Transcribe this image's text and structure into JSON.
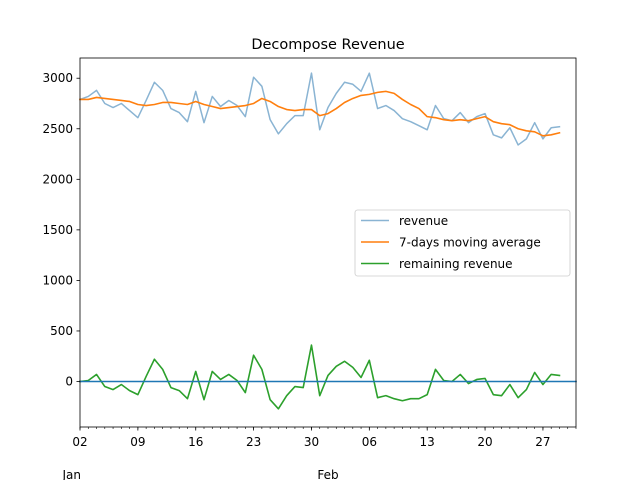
{
  "chart_data": {
    "type": "line",
    "title": "Decompose Revenue",
    "xlabel": "",
    "ylabel": "",
    "x_start": "2023-01-02",
    "ylim": [
      -450,
      3200
    ],
    "y_ticks": [
      0,
      500,
      1000,
      1500,
      2000,
      2500,
      3000
    ],
    "x_ticks": [
      {
        "date": "2023-01-02",
        "label": "02"
      },
      {
        "date": "2023-01-09",
        "label": "09"
      },
      {
        "date": "2023-01-16",
        "label": "16"
      },
      {
        "date": "2023-01-23",
        "label": "23"
      },
      {
        "date": "2023-01-30",
        "label": "30"
      },
      {
        "date": "2023-02-06",
        "label": "06"
      },
      {
        "date": "2023-02-13",
        "label": "13"
      },
      {
        "date": "2023-02-20",
        "label": "20"
      },
      {
        "date": "2023-02-27",
        "label": "27"
      }
    ],
    "month_labels": [
      {
        "date": "2023-01-01",
        "label": "Jan"
      },
      {
        "date": "2023-02-01",
        "label": "Feb"
      }
    ],
    "grid": false,
    "legend_position": "center-right",
    "series": [
      {
        "name": "revenue",
        "color": "#8ab4d3",
        "values": [
          2790,
          2820,
          2880,
          2750,
          2710,
          2750,
          2680,
          2610,
          2780,
          2960,
          2880,
          2700,
          2660,
          2570,
          2870,
          2560,
          2820,
          2720,
          2780,
          2730,
          2620,
          3010,
          2920,
          2590,
          2450,
          2550,
          2630,
          2630,
          3050,
          2490,
          2710,
          2850,
          2960,
          2940,
          2870,
          3050,
          2700,
          2730,
          2680,
          2600,
          2570,
          2530,
          2490,
          2730,
          2600,
          2580,
          2660,
          2560,
          2620,
          2650,
          2440,
          2410,
          2510,
          2340,
          2400,
          2560,
          2400,
          2510,
          2520
        ]
      },
      {
        "name": "7-days moving average",
        "color": "#ff7f0e",
        "values": [
          2790,
          2790,
          2810,
          2800,
          2790,
          2780,
          2770,
          2740,
          2730,
          2740,
          2760,
          2760,
          2750,
          2740,
          2770,
          2740,
          2720,
          2700,
          2710,
          2720,
          2730,
          2750,
          2800,
          2770,
          2720,
          2690,
          2680,
          2690,
          2690,
          2630,
          2650,
          2700,
          2760,
          2800,
          2830,
          2840,
          2860,
          2870,
          2850,
          2790,
          2740,
          2700,
          2620,
          2610,
          2590,
          2580,
          2590,
          2580,
          2600,
          2620,
          2570,
          2550,
          2540,
          2500,
          2480,
          2470,
          2430,
          2440,
          2460
        ]
      },
      {
        "name": "remaining revenue",
        "color": "#2ca02c",
        "values": [
          0,
          10,
          70,
          -50,
          -80,
          -30,
          -90,
          -130,
          50,
          220,
          120,
          -60,
          -90,
          -170,
          100,
          -180,
          100,
          20,
          70,
          10,
          -110,
          260,
          120,
          -180,
          -270,
          -140,
          -50,
          -60,
          360,
          -140,
          60,
          150,
          200,
          140,
          40,
          210,
          -160,
          -140,
          -170,
          -190,
          -170,
          -170,
          -130,
          120,
          10,
          0,
          70,
          -20,
          20,
          30,
          -130,
          -140,
          -30,
          -160,
          -80,
          90,
          -30,
          70,
          60
        ]
      },
      {
        "name": "",
        "color": "#1f77b4",
        "values": [
          0,
          0
        ]
      }
    ]
  }
}
